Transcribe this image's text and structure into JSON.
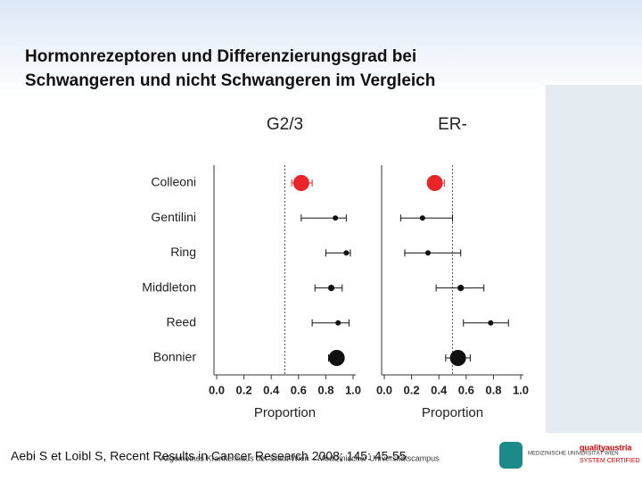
{
  "title": [
    "Hormonrezeptoren und Differenzierungsgrad bei",
    "Schwangeren und nicht Schwangeren im Vergleich"
  ],
  "chart_data": [
    {
      "type": "forest",
      "title": "G2/3",
      "xlabel": "Proportion",
      "categories": [
        "Colleoni",
        "Gentilini",
        "Ring",
        "Middleton",
        "Reed",
        "Bonnier"
      ],
      "values": [
        0.62,
        0.87,
        0.95,
        0.84,
        0.89,
        0.88
      ],
      "lower": [
        0.55,
        0.62,
        0.8,
        0.72,
        0.7,
        0.82
      ],
      "upper": [
        0.7,
        0.95,
        0.98,
        0.92,
        0.97,
        0.93
      ],
      "sizes": [
        3,
        1,
        1,
        1.2,
        1,
        3
      ],
      "colors": [
        "#e8262a",
        "#111",
        "#111",
        "#111",
        "#111",
        "#111"
      ],
      "reference": 0.5,
      "xlim": [
        0,
        1
      ],
      "xticks": [
        {
          "value": 0,
          "label": "0.0"
        },
        0.2,
        0.4,
        0.6,
        0.8,
        {
          "value": 1,
          "label": "1.0"
        }
      ]
    },
    {
      "type": "forest",
      "title": "ER-",
      "xlabel": "Proportion",
      "values": [
        0.37,
        0.28,
        0.32,
        0.56,
        0.78,
        0.54
      ],
      "lower": [
        0.32,
        0.12,
        0.15,
        0.38,
        0.58,
        0.45
      ],
      "upper": [
        0.44,
        0.5,
        0.56,
        0.73,
        0.91,
        0.63
      ],
      "sizes": [
        3,
        1,
        1,
        1.2,
        1,
        3
      ],
      "colors": [
        "#e8262a",
        "#111",
        "#111",
        "#111",
        "#111",
        "#111"
      ],
      "reference": 0.5,
      "xlim": [
        0,
        1
      ],
      "xticks": [
        {
          "value": 0,
          "label": "0.0"
        },
        0.2,
        0.4,
        0.6,
        0.8,
        {
          "value": 1,
          "label": "1.0"
        }
      ]
    }
  ],
  "citation": "Aebi S et Loibl S, Recent Results in Cancer Research 2008; 145: 45-55",
  "footer": "Allgemeines Krankenhaus der Stadt Wien – Medizinischer Universitätscampus",
  "logos": [
    "MEDIZINISCHE UNIVERSITÄT WIEN",
    "qualityaustria",
    "SYSTEM CERTIFIED"
  ]
}
